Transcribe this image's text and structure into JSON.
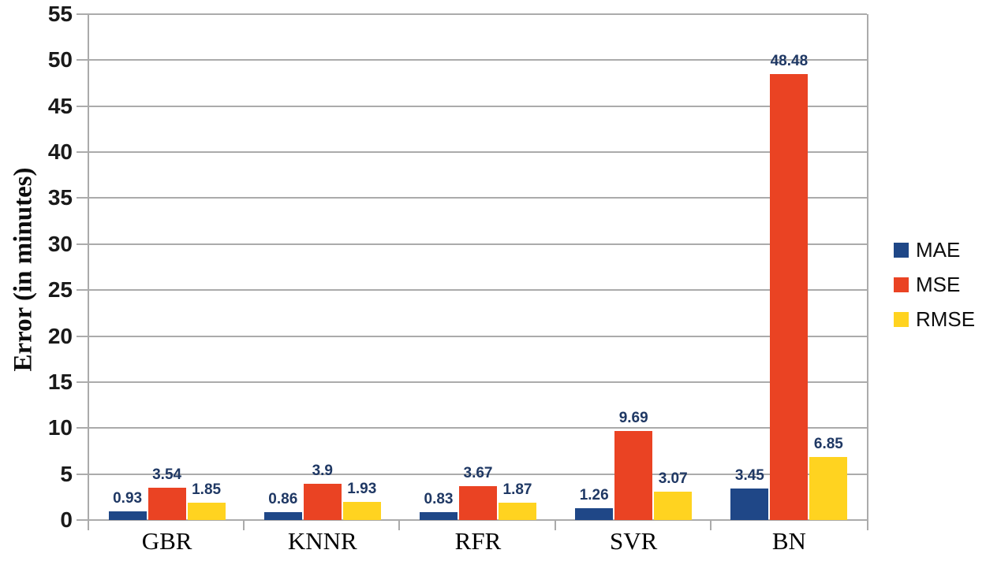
{
  "chart_data": {
    "type": "bar",
    "title": "",
    "xlabel": "",
    "ylabel": "Error (in minutes)",
    "categories": [
      "GBR",
      "KNNR",
      "RFR",
      "SVR",
      "BN"
    ],
    "series": [
      {
        "name": "MAE",
        "color": "#1F4787",
        "values": [
          0.93,
          0.86,
          0.83,
          1.26,
          3.45
        ]
      },
      {
        "name": "MSE",
        "color": "#EA4323",
        "values": [
          3.54,
          3.9,
          3.67,
          9.69,
          48.48
        ]
      },
      {
        "name": "RMSE",
        "color": "#FFD320",
        "values": [
          1.85,
          1.93,
          1.87,
          3.07,
          6.85
        ]
      }
    ],
    "y_ticks": [
      0,
      5,
      10,
      15,
      20,
      25,
      30,
      35,
      40,
      45,
      50,
      55
    ],
    "ylim": [
      0,
      55
    ],
    "grid": "horizontal",
    "legend_position": "right",
    "data_labels_shown": true,
    "data_label_color": "#1F3864",
    "gridline_color": "#ABABAB",
    "tick_label_color": "#1a1a1a"
  }
}
